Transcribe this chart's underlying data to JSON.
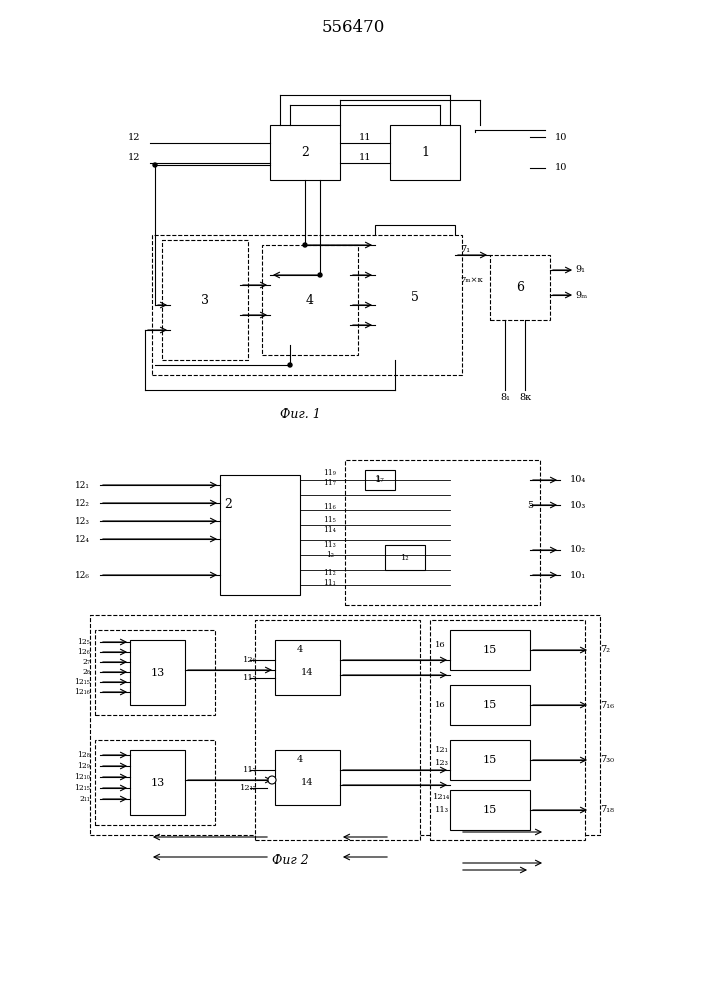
{
  "title": "556470",
  "title_fontsize": 12,
  "fig1_caption": "Фиг. 1",
  "fig2_caption": "Фиг 2",
  "background_color": "#ffffff",
  "line_color": "#000000",
  "box_color": "#000000",
  "text_color": "#000000"
}
